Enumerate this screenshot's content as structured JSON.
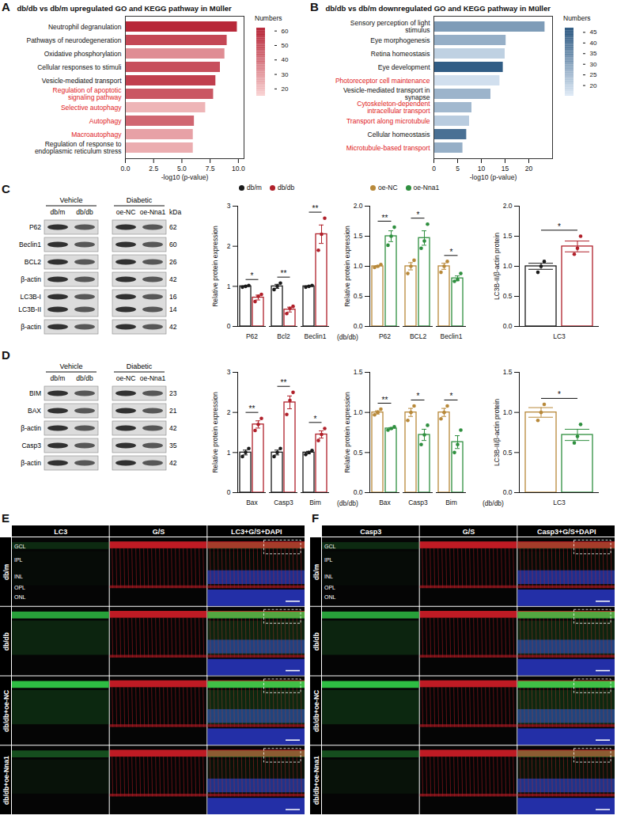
{
  "chart_data": [
    {
      "type": "bar",
      "panel": "A",
      "orientation": "horizontal",
      "title": "db/db vs db/m  upregulated GO and KEGG pathway in Müller",
      "categories": [
        "Neutrophil degranulation",
        "Pathways of neurodegeneration",
        "Oxidative phosphorylation",
        "Cellular responses to stimuli",
        "Vesicle-mediated transport",
        "Regulation of apoptotic signaling pathway",
        "Selective autophagy",
        "Autophagy",
        "Macroautophagy",
        "Regulation of response to endoplasmic reticulum stress"
      ],
      "values": [
        9.9,
        9.0,
        8.8,
        8.4,
        8.0,
        7.8,
        7.1,
        6.1,
        6.0,
        6.0
      ],
      "numbers": [
        58,
        50,
        32,
        48,
        52,
        46,
        22,
        42,
        27,
        24
      ],
      "colorbar": {
        "title": "Numbers",
        "range": [
          15,
          62
        ],
        "ticks": [
          20,
          30,
          40,
          50,
          60
        ]
      },
      "xlim": [
        0,
        10.5
      ],
      "xticks": [
        {
          "value": 0,
          "label": "0.0"
        },
        2.5,
        {
          "value": 5,
          "label": "5.0"
        },
        7.5,
        {
          "value": 10,
          "label": "10.0"
        }
      ],
      "xlabel": "-log10 (p-value)"
    },
    {
      "type": "bar",
      "panel": "B",
      "orientation": "horizontal",
      "title": "db/db vs db/m  downregulated GO and KEGG pathway in Müller",
      "categories": [
        "Sensory perception of light stimulus",
        "Eye morphogenesis",
        "Retina homeostasis",
        "Eye development",
        "Photoreceptor cell maintenance",
        "Vesicle-mediated transport in synapse",
        "Cytoskeleton-dependent intracellular transport",
        "Transport along microtubule",
        "Cellular homeostasis",
        "Microtubule-based transport"
      ],
      "values": [
        23.4,
        15.2,
        15.0,
        14.6,
        13.9,
        12.0,
        8.0,
        7.5,
        6.9,
        6.1
      ],
      "numbers": [
        31,
        27,
        20,
        44,
        17,
        26,
        25,
        21,
        40,
        27
      ],
      "colorbar": {
        "title": "Numbers",
        "range": [
          15,
          47
        ],
        "ticks": [
          20,
          25,
          30,
          35,
          40,
          45
        ]
      },
      "xlim": [
        0,
        25
      ],
      "xticks": [
        0,
        5,
        10,
        15,
        20
      ],
      "xlabel": "-log10 (p-value)"
    },
    {
      "type": "bar",
      "legend": "top",
      "ylabel": "Relative protein expression",
      "categories": [
        "P62",
        "Bcl2",
        "Beclin1"
      ],
      "series": [
        {
          "name": "db/m",
          "color": "#1a1a1a",
          "values": [
            1.0,
            1.0,
            1.0
          ],
          "errors": [
            0.01,
            0.05,
            0.01
          ],
          "points": [
            [
              0.98,
              1.0,
              1.02
            ],
            [
              0.92,
              1.0,
              1.08
            ],
            [
              0.98,
              1.0,
              1.02
            ]
          ]
        },
        {
          "name": "db/db",
          "color": "#b0202a",
          "values": [
            0.72,
            0.42,
            2.3
          ],
          "errors": [
            0.06,
            0.06,
            0.23
          ],
          "points": [
            [
              0.62,
              0.75,
              0.8
            ],
            [
              0.32,
              0.45,
              0.5
            ],
            [
              1.9,
              2.3,
              2.7
            ]
          ]
        }
      ],
      "significance": [
        "*",
        "**",
        "**"
      ],
      "ylim": [
        0,
        3
      ],
      "yticks": [
        0,
        1,
        2,
        3
      ]
    },
    {
      "type": "bar",
      "legend": "top",
      "ylabel": "Relative protein expression",
      "annotation": "(db/db)",
      "categories": [
        "P62",
        "BCL2",
        "Beclin1"
      ],
      "series": [
        {
          "name": "oe-NC",
          "color": "#b8893a",
          "values": [
            1.0,
            1.0,
            1.0
          ],
          "errors": [
            0.01,
            0.06,
            0.05
          ],
          "points": [
            [
              0.98,
              1.0,
              1.03
            ],
            [
              0.88,
              1.0,
              1.1
            ],
            [
              0.9,
              1.0,
              1.08
            ]
          ]
        },
        {
          "name": "oe-Nna1",
          "color": "#2f8f3f",
          "values": [
            1.5,
            1.47,
            0.8
          ],
          "errors": [
            0.09,
            0.12,
            0.04
          ],
          "points": [
            [
              1.35,
              1.5,
              1.65
            ],
            [
              1.3,
              1.42,
              1.7
            ],
            [
              0.75,
              0.78,
              0.88
            ]
          ]
        }
      ],
      "significance": [
        "**",
        "*",
        "*"
      ],
      "ylim": [
        0,
        2
      ],
      "yticks": [
        {
          "value": 0,
          "label": "0.0"
        },
        0.5,
        {
          "value": 1,
          "label": "1.0"
        },
        1.5,
        {
          "value": 2,
          "label": "2.0"
        }
      ]
    },
    {
      "type": "bar",
      "ylabel": "LC3B-II/β-actin protein",
      "categories": [
        "LC3"
      ],
      "series": [
        {
          "name": "db/m",
          "color": "#1a1a1a",
          "values": [
            1.0
          ],
          "errors": [
            0.05
          ],
          "points": [
            [
              0.9,
              1.0,
              1.08
            ]
          ]
        },
        {
          "name": "db/db",
          "color": "#b0202a",
          "values": [
            1.33
          ],
          "errors": [
            0.09
          ],
          "points": [
            [
              1.2,
              1.3,
              1.5
            ]
          ]
        }
      ],
      "significance": [
        "*"
      ],
      "ylim": [
        0,
        2
      ],
      "yticks": [
        {
          "value": 0,
          "label": "0.0"
        },
        0.5,
        {
          "value": 1,
          "label": "1.0"
        },
        1.5,
        {
          "value": 2,
          "label": "2.0"
        }
      ]
    },
    {
      "type": "bar",
      "ylabel": "Relative protein expression",
      "categories": [
        "Bax",
        "Casp3",
        "Bim"
      ],
      "series": [
        {
          "name": "db/m",
          "color": "#1a1a1a",
          "values": [
            1.0,
            1.0,
            1.0
          ],
          "errors": [
            0.06,
            0.06,
            0.03
          ],
          "points": [
            [
              0.9,
              1.0,
              1.1
            ],
            [
              0.9,
              1.0,
              1.1
            ],
            [
              0.95,
              1.0,
              1.05
            ]
          ]
        },
        {
          "name": "db/db",
          "color": "#b0202a",
          "values": [
            1.7,
            2.25,
            1.45
          ],
          "errors": [
            0.09,
            0.16,
            0.09
          ],
          "points": [
            [
              1.55,
              1.7,
              1.85
            ],
            [
              1.95,
              2.3,
              2.5
            ],
            [
              1.3,
              1.45,
              1.6
            ]
          ]
        }
      ],
      "significance": [
        "**",
        "**",
        "*"
      ],
      "ylim": [
        0,
        3
      ],
      "yticks": [
        0,
        1,
        2,
        3
      ]
    },
    {
      "type": "bar",
      "ylabel": "Relative protein expression",
      "annotation": "(db/db)",
      "categories": [
        "Bax",
        "Casp3",
        "Bim"
      ],
      "series": [
        {
          "name": "oe-NC",
          "color": "#b8893a",
          "values": [
            1.0,
            1.0,
            1.0
          ],
          "errors": [
            0.02,
            0.05,
            0.05
          ],
          "points": [
            [
              0.97,
              1.0,
              1.04
            ],
            [
              0.9,
              1.0,
              1.08
            ],
            [
              0.92,
              1.0,
              1.08
            ]
          ]
        },
        {
          "name": "oe-Nna1",
          "color": "#2f8f3f",
          "values": [
            0.8,
            0.72,
            0.63
          ],
          "errors": [
            0.01,
            0.07,
            0.08
          ],
          "points": [
            [
              0.78,
              0.8,
              0.82
            ],
            [
              0.6,
              0.72,
              0.84
            ],
            [
              0.5,
              0.6,
              0.78
            ]
          ]
        }
      ],
      "significance": [
        "**",
        "*",
        "*"
      ],
      "ylim": [
        0,
        1.5
      ],
      "yticks": [
        {
          "value": 0,
          "label": "0.0"
        },
        0.5,
        {
          "value": 1,
          "label": "1.0"
        },
        1.5
      ]
    },
    {
      "type": "bar",
      "ylabel": "LC3B-II/β-actin protein",
      "annotation": "(db/db)",
      "categories": [
        "LC3"
      ],
      "series": [
        {
          "name": "oe-NC",
          "color": "#b8893a",
          "values": [
            1.0
          ],
          "errors": [
            0.06
          ],
          "points": [
            [
              0.9,
              1.0,
              1.1
            ]
          ]
        },
        {
          "name": "oe-Nna1",
          "color": "#2f8f3f",
          "values": [
            0.72
          ],
          "errors": [
            0.07
          ],
          "points": [
            [
              0.62,
              0.7,
              0.85
            ]
          ]
        }
      ],
      "significance": [
        "*"
      ],
      "ylim": [
        0,
        1.5
      ],
      "yticks": [
        {
          "value": 0,
          "label": "0.0"
        },
        0.5,
        {
          "value": 1,
          "label": "1.0"
        },
        1.5
      ]
    }
  ],
  "blots": [
    {
      "panel": "C",
      "kda_title": "kDa",
      "groups": [
        {
          "header": "Vehicle",
          "lanes": [
            "db/m",
            "db/db"
          ]
        },
        {
          "header": "Diabetic",
          "lanes": [
            "oe-NC",
            "oe-Nna1"
          ]
        }
      ],
      "rows": [
        {
          "labels": [
            "P62"
          ],
          "kda": [
            62
          ]
        },
        {
          "labels": [
            "Beclin1"
          ],
          "kda": [
            60
          ]
        },
        {
          "labels": [
            "BCL2"
          ],
          "kda": [
            26
          ]
        },
        {
          "labels": [
            "β-actin"
          ],
          "kda": [
            42
          ]
        },
        {
          "labels": [
            "LC3B-I",
            "LC3B-II"
          ],
          "kda": [
            16,
            14
          ]
        },
        {
          "labels": [
            "β-actin"
          ],
          "kda": [
            42
          ]
        }
      ]
    },
    {
      "panel": "D",
      "groups": [
        {
          "header": "Vehicle",
          "lanes": [
            "db/m",
            "db/db"
          ]
        },
        {
          "header": "Diabetic",
          "lanes": [
            "oe-NC",
            "oe-Nna1"
          ]
        }
      ],
      "rows": [
        {
          "labels": [
            "BIM"
          ],
          "kda": [
            23
          ]
        },
        {
          "labels": [
            "BAX"
          ],
          "kda": [
            21
          ]
        },
        {
          "labels": [
            "β-actin"
          ],
          "kda": [
            42
          ]
        },
        {
          "labels": [
            "Casp3"
          ],
          "kda": [
            35
          ]
        },
        {
          "labels": [
            "β-actin"
          ],
          "kda": [
            42
          ]
        }
      ]
    }
  ],
  "micrographs": [
    {
      "panel": "E",
      "columns": [
        "LC3",
        "G/S",
        "LC3+G/S+DAPI"
      ],
      "rows": [
        "db/m",
        "db/db",
        "db/db+oe-NC",
        "db/db+oe-Nna1"
      ],
      "layers": [
        "GCL",
        "IPL",
        "INL",
        "OPL",
        "ONL"
      ]
    },
    {
      "panel": "F",
      "columns": [
        "Casp3",
        "G/S",
        "Casp3+G/S+DAPI"
      ],
      "rows": [
        "db/m",
        "db/db",
        "db/db+oe-NC",
        "db/db+oe-Nna1"
      ],
      "layers": [
        "GCL",
        "IPL",
        "INL",
        "OPL",
        "ONL"
      ]
    }
  ]
}
